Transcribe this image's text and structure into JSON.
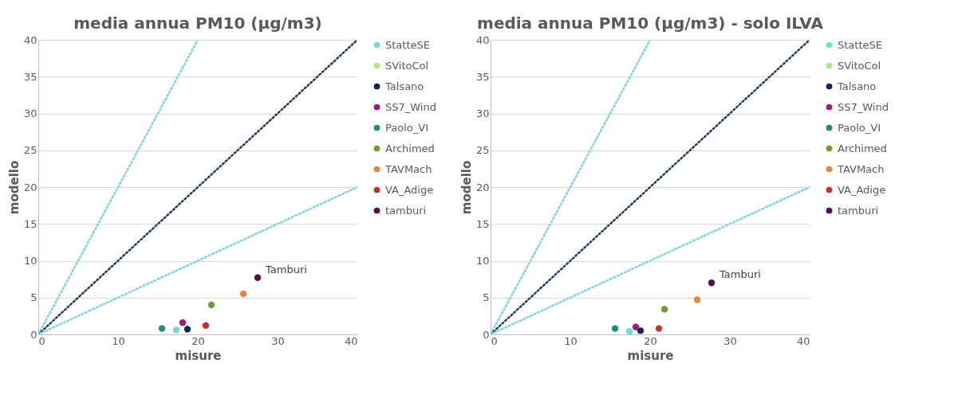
{
  "chart_data": [
    {
      "type": "scatter",
      "title": "media annua PM10 (µg/m3)",
      "xlabel": "misure",
      "ylabel": "modello",
      "xlim": [
        0,
        40
      ],
      "xticks": [
        0,
        10,
        20,
        30,
        40
      ],
      "ylim": [
        0,
        40
      ],
      "yticks": [
        0,
        5,
        10,
        15,
        20,
        25,
        30,
        35,
        40
      ],
      "grid": "y",
      "legend": "right",
      "marker": "circle",
      "annotations": [
        {
          "text": "Tamburi",
          "x": 27.5,
          "y": 7.7
        }
      ],
      "series": [
        {
          "type": "line",
          "color": "#7fd3e6",
          "line_style": "dotted",
          "marker": "none",
          "x": [
            0,
            20
          ],
          "values": [
            0,
            40
          ]
        },
        {
          "type": "line",
          "color": "#1f3a5c",
          "line_style": "dotted",
          "marker": "none",
          "x": [
            0,
            40
          ],
          "values": [
            0,
            40
          ]
        },
        {
          "type": "line",
          "color": "#7fd3e6",
          "line_style": "dotted",
          "marker": "none",
          "x": [
            0,
            40
          ],
          "values": [
            0,
            20
          ]
        },
        {
          "name": "StatteSE",
          "color": "#6fe0cf",
          "x": [
            17.3
          ],
          "values": [
            0.6
          ]
        },
        {
          "name": "SVitoCol",
          "color": "#b5e08c",
          "x": [
            null
          ],
          "values": [
            null
          ]
        },
        {
          "name": "Talsano",
          "color": "#0e2a55",
          "x": [
            18.7
          ],
          "values": [
            0.7
          ]
        },
        {
          "name": "SS7_Wind",
          "color": "#a3197f",
          "x": [
            18.1
          ],
          "values": [
            1.6
          ]
        },
        {
          "name": "Paolo_VI",
          "color": "#16907c",
          "x": [
            15.5
          ],
          "values": [
            0.8
          ]
        },
        {
          "name": "Archimed",
          "color": "#6c9f2b",
          "x": [
            21.7
          ],
          "values": [
            4.0
          ]
        },
        {
          "name": "TAVMach",
          "color": "#e8853d",
          "x": [
            25.7
          ],
          "values": [
            5.5
          ]
        },
        {
          "name": "VA_Adige",
          "color": "#c8302c",
          "x": [
            21.0
          ],
          "values": [
            1.2
          ]
        },
        {
          "name": "tamburi",
          "color": "#5a0b47",
          "x": [
            27.5
          ],
          "values": [
            7.7
          ]
        }
      ]
    },
    {
      "type": "scatter",
      "title": "media annua PM10 (µg/m3) - solo ILVA",
      "xlabel": "misure",
      "ylabel": "modello",
      "xlim": [
        0,
        40
      ],
      "xticks": [
        0,
        10,
        20,
        30,
        40
      ],
      "ylim": [
        0,
        40
      ],
      "yticks": [
        0,
        5,
        10,
        15,
        20,
        25,
        30,
        35,
        40
      ],
      "grid": "y",
      "legend": "right",
      "marker": "circle",
      "annotations": [
        {
          "text": "Tamburi",
          "x": 27.7,
          "y": 7.0
        }
      ],
      "series": [
        {
          "type": "line",
          "color": "#7fd3e6",
          "line_style": "dotted",
          "marker": "none",
          "x": [
            0,
            20
          ],
          "values": [
            0,
            40
          ]
        },
        {
          "type": "line",
          "color": "#1f3a5c",
          "line_style": "dotted",
          "marker": "none",
          "x": [
            0,
            40
          ],
          "values": [
            0,
            40
          ]
        },
        {
          "type": "line",
          "color": "#7fd3e6",
          "line_style": "dotted",
          "marker": "none",
          "x": [
            0,
            40
          ],
          "values": [
            0,
            20
          ]
        },
        {
          "name": "StatteSE",
          "color": "#6fe0cf",
          "x": [
            17.4
          ],
          "values": [
            0.4
          ]
        },
        {
          "name": "SVitoCol",
          "color": "#b5e08c",
          "x": [
            null
          ],
          "values": [
            null
          ]
        },
        {
          "name": "Talsano",
          "color": "#0e2a55",
          "x": [
            18.8
          ],
          "values": [
            0.5
          ]
        },
        {
          "name": "SS7_Wind",
          "color": "#a3197f",
          "x": [
            18.2
          ],
          "values": [
            1.0
          ]
        },
        {
          "name": "Paolo_VI",
          "color": "#16907c",
          "x": [
            15.6
          ],
          "values": [
            0.8
          ]
        },
        {
          "name": "Archimed",
          "color": "#6c9f2b",
          "x": [
            21.8
          ],
          "values": [
            3.4
          ]
        },
        {
          "name": "TAVMach",
          "color": "#e8853d",
          "x": [
            25.9
          ],
          "values": [
            4.7
          ]
        },
        {
          "name": "VA_Adige",
          "color": "#c8302c",
          "x": [
            21.1
          ],
          "values": [
            0.8
          ]
        },
        {
          "name": "tamburi",
          "color": "#5a0b47",
          "x": [
            27.7
          ],
          "values": [
            7.0
          ]
        }
      ]
    }
  ]
}
